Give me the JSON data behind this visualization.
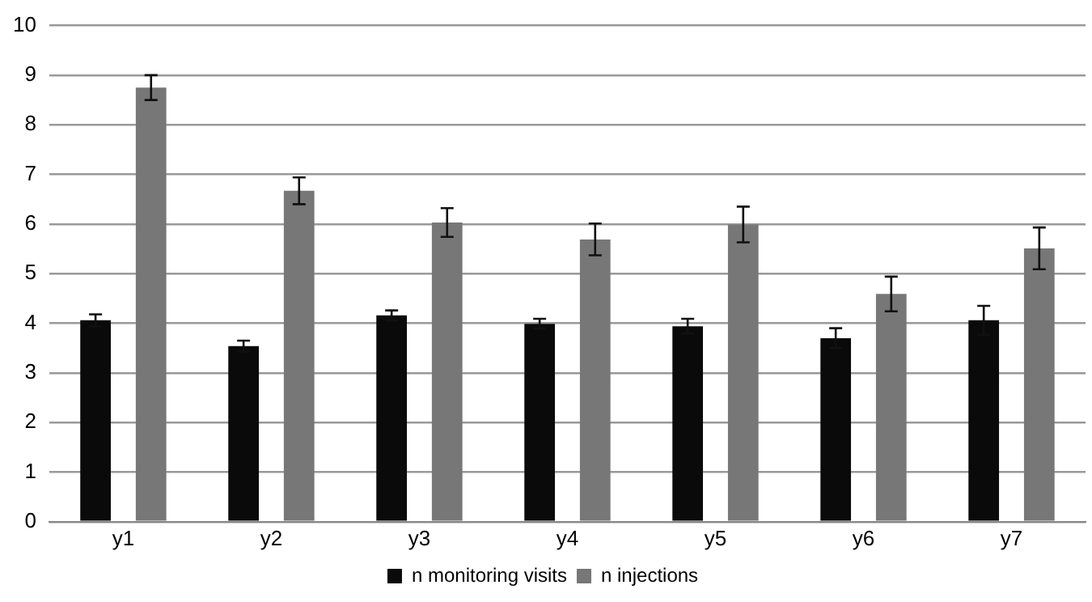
{
  "chart_data": {
    "type": "bar",
    "categories": [
      "y1",
      "y2",
      "y3",
      "y4",
      "y5",
      "y6",
      "y7"
    ],
    "series": [
      {
        "name": "n monitoring visits",
        "color": "#0a0a0a",
        "values": [
          4.06,
          3.54,
          4.16,
          3.99,
          3.94,
          3.7,
          4.06
        ],
        "errors": [
          0.12,
          0.11,
          0.1,
          0.1,
          0.15,
          0.2,
          0.29
        ]
      },
      {
        "name": "n injections",
        "color": "#777777",
        "values": [
          8.75,
          6.67,
          6.03,
          5.69,
          5.99,
          4.59,
          5.51
        ],
        "errors": [
          0.25,
          0.27,
          0.29,
          0.32,
          0.36,
          0.35,
          0.42
        ]
      }
    ],
    "ylim": [
      0,
      10
    ],
    "yticks": [
      0,
      1,
      2,
      3,
      4,
      5,
      6,
      7,
      8,
      9,
      10
    ],
    "grid": "y",
    "legend": "bottom"
  }
}
